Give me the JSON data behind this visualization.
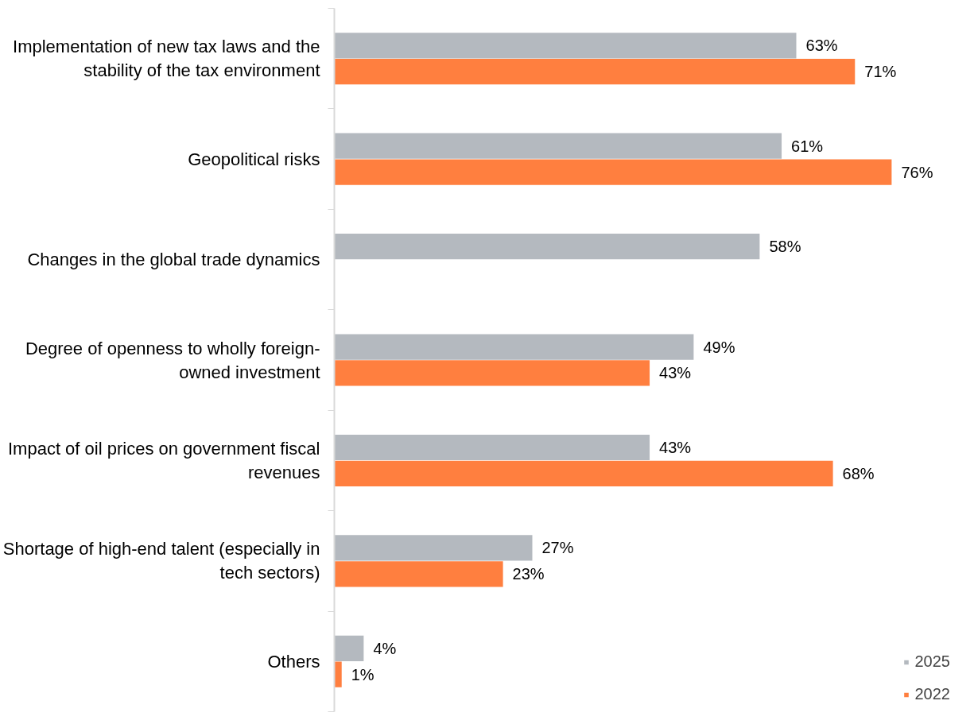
{
  "chart_data": {
    "type": "bar",
    "orientation": "horizontal",
    "categories": [
      "Implementation of new tax laws and the\nstability of the tax environment",
      "Geopolitical risks",
      "Changes in the global trade dynamics",
      "Degree of openness to wholly foreign-\nowned investment",
      "Impact of oil prices on government fiscal\nrevenues",
      "Shortage of high-end talent (especially in\ntech sectors)",
      "Others"
    ],
    "series": [
      {
        "name": "2025",
        "color": "#b4b9bf",
        "values": [
          63,
          61,
          58,
          49,
          43,
          27,
          4
        ],
        "value_labels": [
          "63%",
          "61%",
          "58%",
          "49%",
          "43%",
          "27%",
          "4%"
        ]
      },
      {
        "name": "2022",
        "color": "#ff7f3f",
        "values": [
          71,
          76,
          null,
          43,
          68,
          23,
          1
        ],
        "value_labels": [
          "71%",
          "76%",
          null,
          "43%",
          "68%",
          "23%",
          "1%"
        ]
      }
    ],
    "legend": "bottom right",
    "grid": false
  }
}
